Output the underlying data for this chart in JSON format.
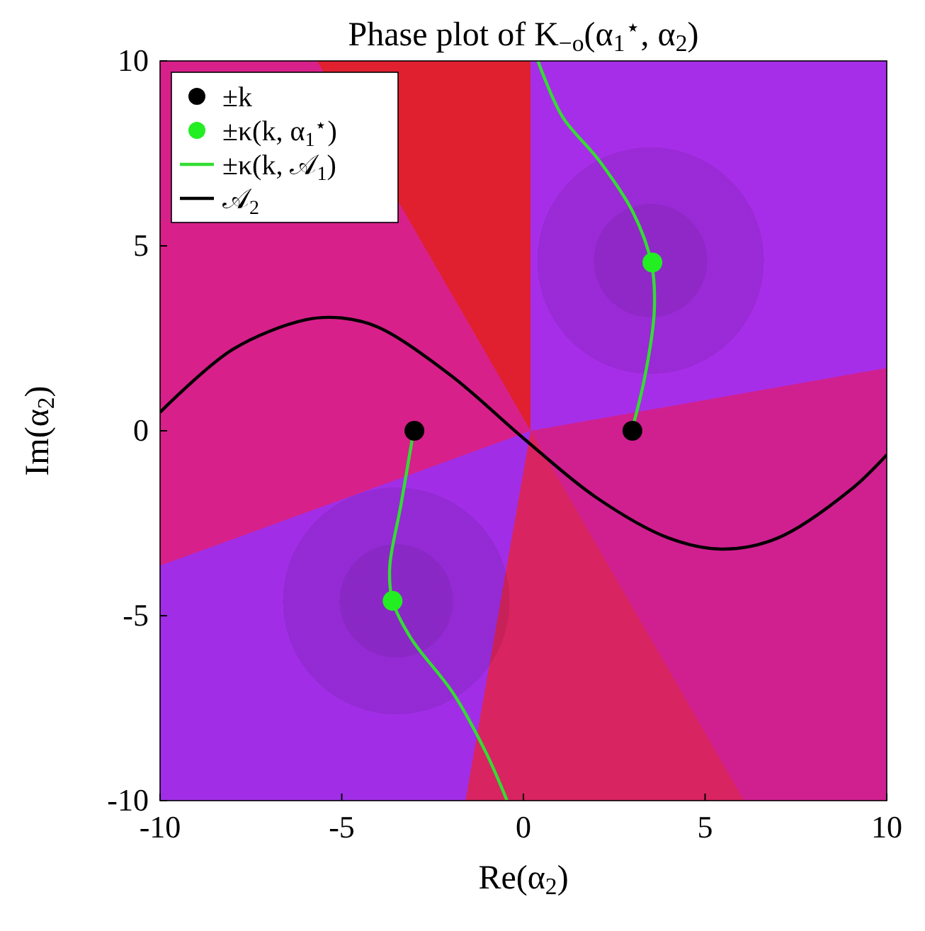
{
  "chart_data": {
    "type": "line",
    "title": "Phase plot of K$_{−o}$(α$_{1}$$^{⋆}$, α$_{2}$)",
    "xlabel": "Re(α$_{2}$)",
    "ylabel": "Im(α$_{2}$)",
    "xlim": [
      -10,
      10
    ],
    "ylim": [
      -10,
      10
    ],
    "xticks": [
      -10,
      -5,
      0,
      5,
      10
    ],
    "yticks": [
      -10,
      -5,
      0,
      5,
      10
    ],
    "grid": false,
    "legend": "top left",
    "series": [
      {
        "type": "scatter",
        "name": "±k",
        "color": "#000000",
        "x": [
          3,
          -3
        ],
        "values": [
          0,
          0
        ]
      },
      {
        "type": "scatter",
        "name": "±κ(k, α$_{1}$$^{⋆}$)",
        "color": "#22ee22",
        "x": [
          3.55,
          -3.6
        ],
        "values": [
          4.55,
          -4.6
        ]
      },
      {
        "name": "±κ(k, 𝒜$_{1}$)",
        "color": "#33dd33",
        "x": [
          2.98,
          3.33,
          3.6,
          3.53,
          3.02,
          2.09,
          1.07,
          0.4,
          null,
          -3.02,
          -3.37,
          -3.68,
          -3.6,
          -3.1,
          -1.93,
          -1.03,
          -0.45
        ],
        "values": [
          0,
          1.4,
          3.2,
          4.5,
          5.9,
          7.3,
          8.5,
          10,
          null,
          0,
          -2,
          -3.7,
          -4.6,
          -5.6,
          -7.1,
          -8.7,
          -10
        ]
      },
      {
        "name": "𝒜$_{2}$",
        "color": "#000000",
        "x": [
          -10,
          -8,
          -6,
          -5,
          -4,
          -2,
          0,
          2,
          4,
          5.5,
          7,
          9,
          10
        ],
        "values": [
          0.5,
          2.2,
          3,
          3.05,
          2.8,
          1.5,
          -0.2,
          -1.8,
          -2.9,
          -3.2,
          -2.9,
          -1.6,
          -0.65
        ]
      }
    ]
  }
}
